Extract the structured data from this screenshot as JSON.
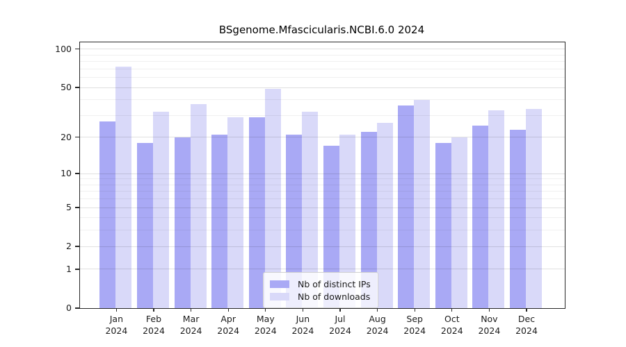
{
  "title": "BSgenome.Mfascicularis.NCBI.6.0 2024",
  "chart_data": {
    "type": "bar",
    "title": "BSgenome.Mfascicularis.NCBI.6.0 2024",
    "xlabel": "",
    "ylabel": "",
    "yscale": "log1p",
    "ylim": [
      0,
      113
    ],
    "y_ticks": [
      100,
      50,
      20,
      10,
      5,
      2,
      1,
      0
    ],
    "y_minor_ticks": [
      90,
      80,
      70,
      60,
      40,
      30,
      9,
      8,
      7,
      6,
      4,
      3
    ],
    "grid": true,
    "legend_position": "bottom-center-inside",
    "months": [
      "Jan",
      "Feb",
      "Mar",
      "Apr",
      "May",
      "Jun",
      "Jul",
      "Aug",
      "Sep",
      "Oct",
      "Nov",
      "Dec"
    ],
    "year": "2024",
    "categories": [
      "Jan 2024",
      "Feb 2024",
      "Mar 2024",
      "Apr 2024",
      "May 2024",
      "Jun 2024",
      "Jul 2024",
      "Aug 2024",
      "Sep 2024",
      "Oct 2024",
      "Nov 2024",
      "Dec 2024"
    ],
    "series": [
      {
        "name": "Nb of distinct IPs",
        "color": "#a9a9f5",
        "values": [
          27,
          18,
          20,
          21,
          29,
          21,
          17,
          22,
          36,
          18,
          25,
          23
        ]
      },
      {
        "name": "Nb of downloads",
        "color": "#d9d9f9",
        "values": [
          73,
          32,
          37,
          29,
          49,
          32,
          21,
          26,
          40,
          20,
          33,
          34
        ]
      }
    ],
    "colors": {
      "axis": "#262626",
      "text": "#1a1a1a",
      "grid_major": "#e0e0e0",
      "grid_minor": "#efefef",
      "background": "#ffffff"
    }
  }
}
